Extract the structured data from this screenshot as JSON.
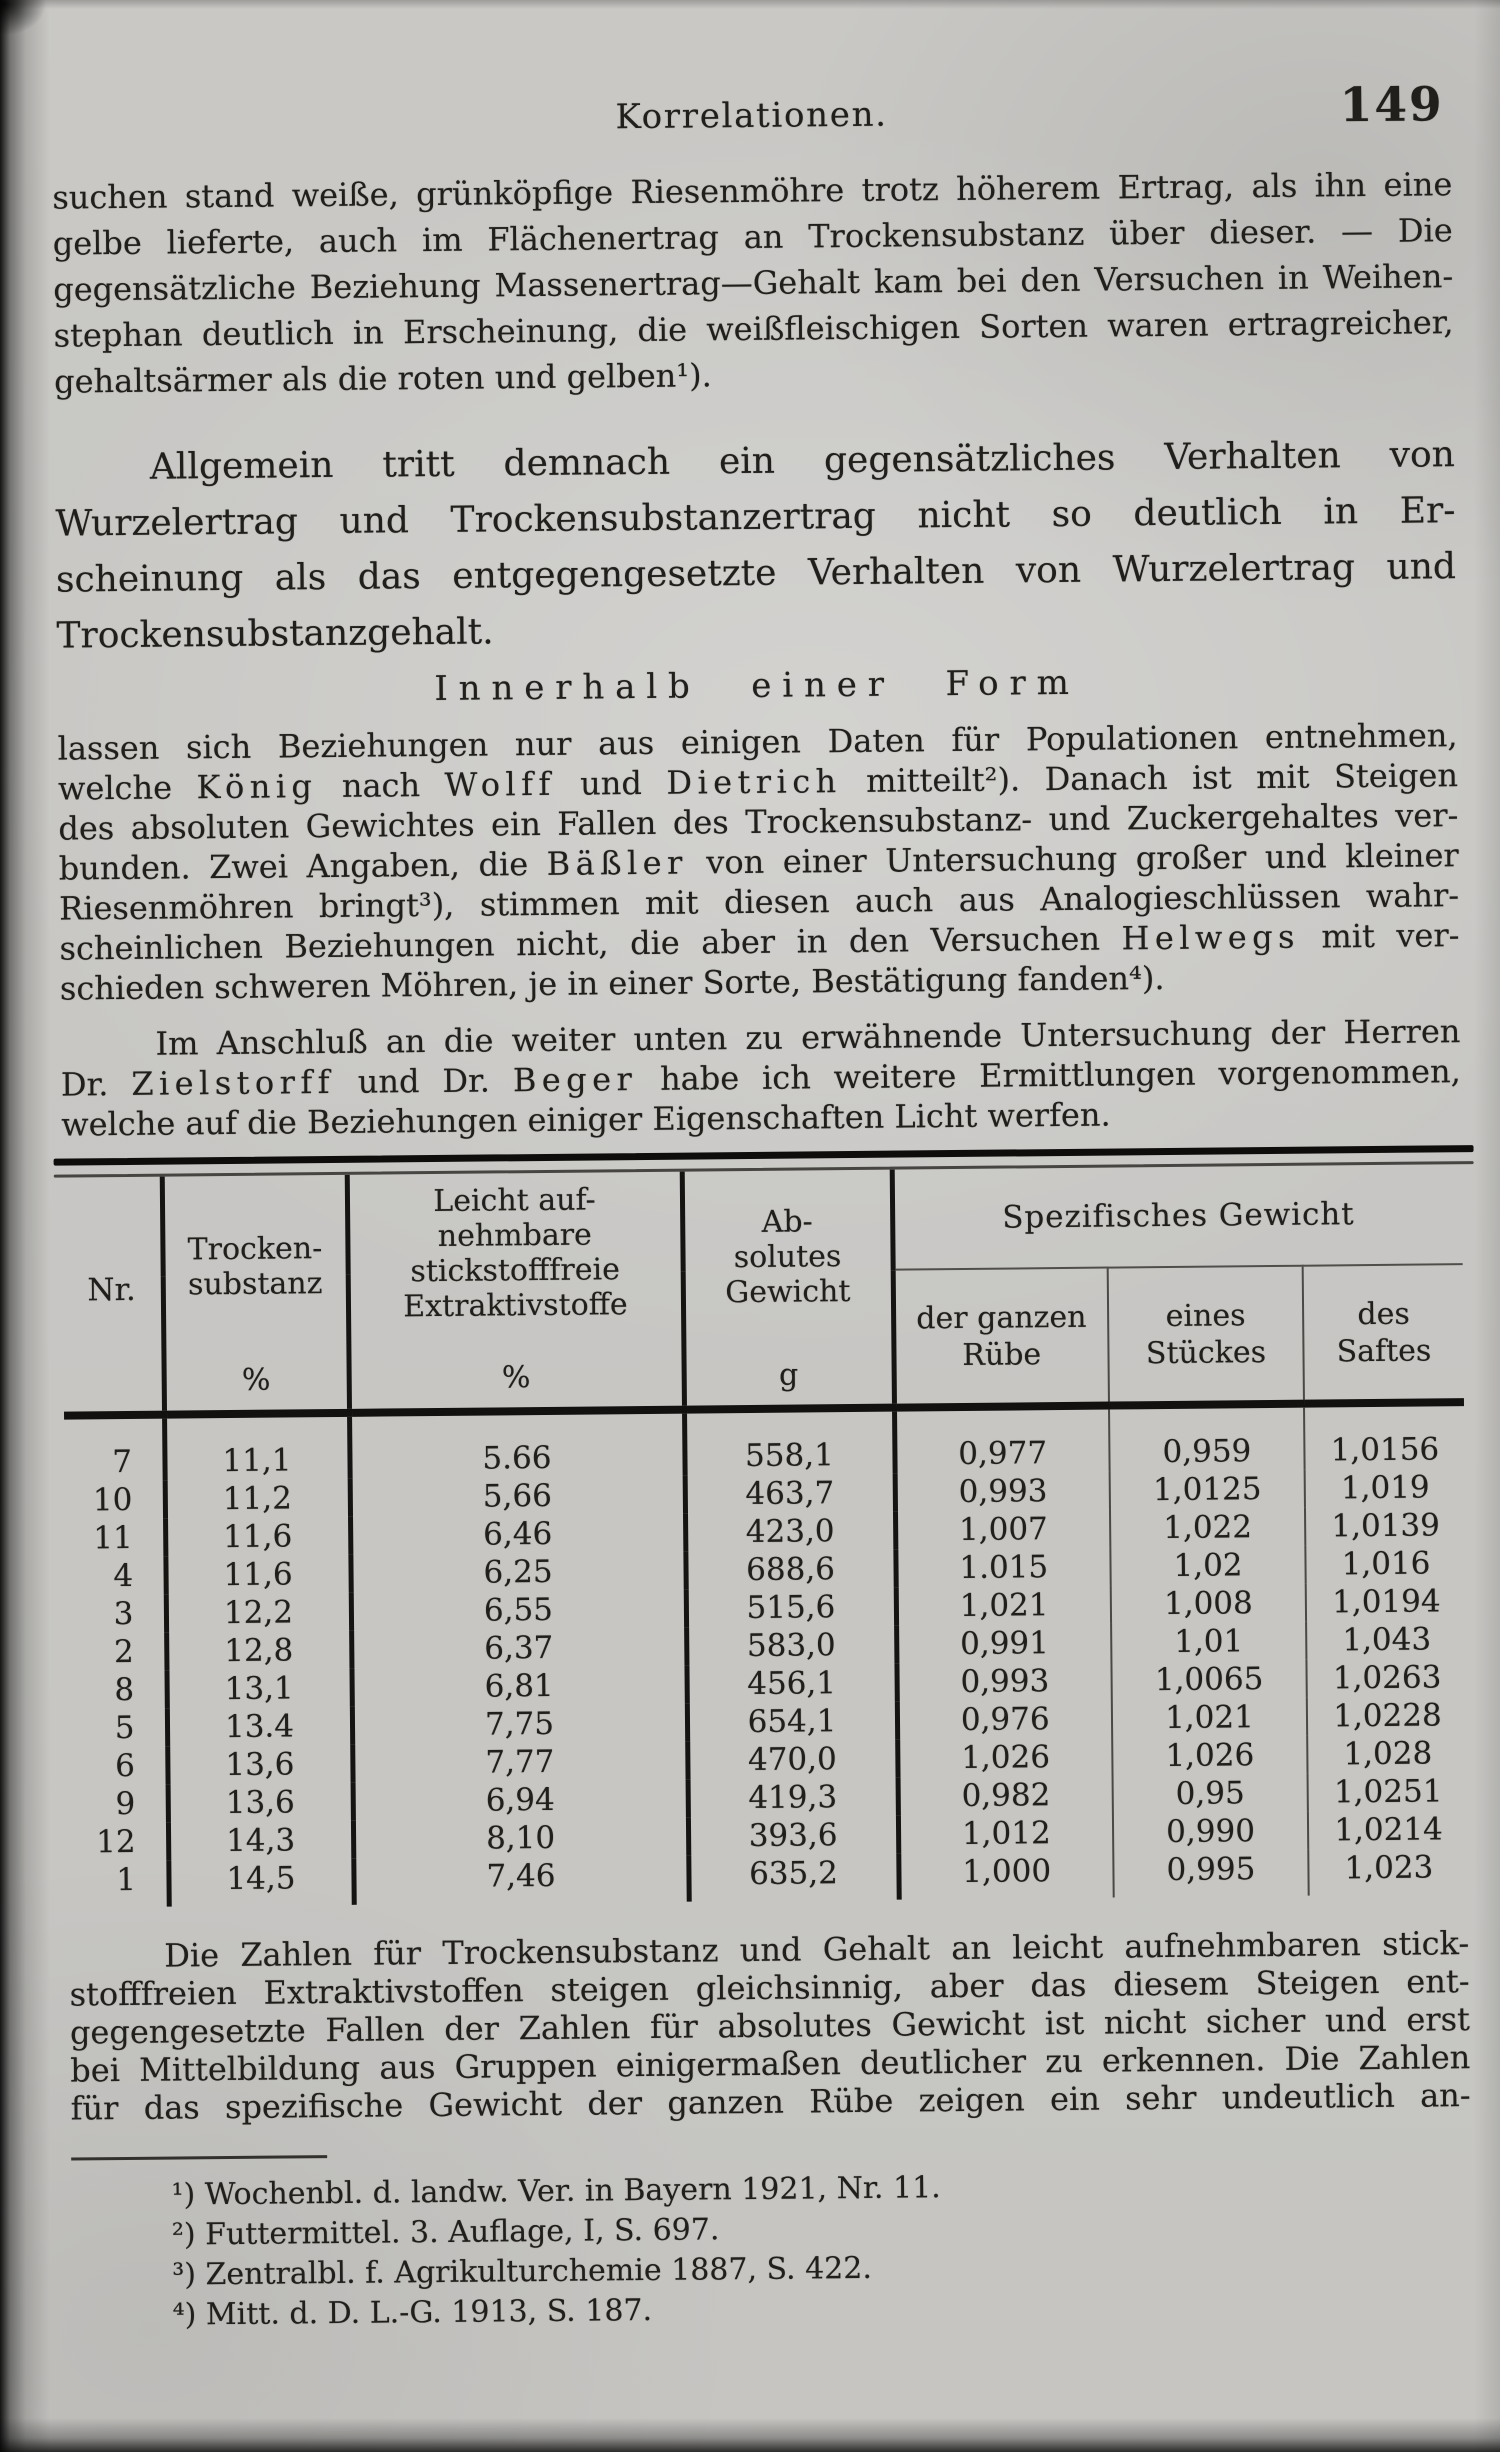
{
  "page": {
    "running_head": "Korrelationen.",
    "page_number": "149",
    "paper_color": "#c9c8c5",
    "ink_color": "#211f1c"
  },
  "paragraphs": {
    "p1_lines": [
      "suchen stand weiße, grünköpfige Riesenmöhre trotz höherem Ertrag, als ihn eine",
      "gelbe lieferte, auch im Flächenertrag an Trockensubstanz über dieser. — Die",
      "gegensätzliche Beziehung Massenertrag—Gehalt kam bei den Versuchen in Weihen-",
      "stephan deutlich in Erscheinung, die weißfleischigen Sorten waren ertragreicher,",
      "gehaltsärmer als die roten und gelben¹)."
    ],
    "p2_lines": [
      "Allgemein tritt demnach ein gegensätzliches Verhalten von",
      "Wurzelertrag und Trockensubstanzertrag nicht so deutlich in Er-",
      "scheinung als das entgegengesetzte Verhalten von Wurzelertrag und",
      "Trockensubstanzgehalt."
    ],
    "heading": "Innerhalb einer Form",
    "p3_lines": [
      "lassen sich Beziehungen nur aus einigen Daten für Populationen entnehmen,",
      [
        "welche ",
        {
          "sp": "König"
        },
        " nach ",
        {
          "sp": "Wolff"
        },
        " und ",
        {
          "sp": "Dietrich"
        },
        " mitteilt²). Danach ist mit Steigen"
      ],
      "des absoluten Gewichtes ein Fallen des Trockensubstanz- und Zuckergehaltes ver-",
      [
        "bunden. Zwei Angaben, die ",
        {
          "sp": "Bäßler"
        },
        " von einer Untersuchung großer und kleiner"
      ],
      "Riesenmöhren bringt³), stimmen mit diesen auch aus Analogieschlüssen wahr-",
      [
        "scheinlichen Beziehungen nicht, die aber in den Versuchen ",
        {
          "sp": "Helwegs"
        },
        " mit ver-"
      ],
      "schieden schweren Möhren, je in einer Sorte, Bestätigung fanden⁴)."
    ],
    "p4_lines": [
      "Im Anschluß an die weiter unten zu erwähnende Untersuchung der Herren",
      [
        "Dr. ",
        {
          "sp": "Zielstorff"
        },
        " und Dr. ",
        {
          "sp": "Beger"
        },
        " habe ich weitere Ermittlungen vorgenommen,"
      ],
      "welche auf die Beziehungen einiger Eigenschaften Licht werfen."
    ],
    "p5_lines": [
      "Die Zahlen für Trockensubstanz und Gehalt an leicht aufnehmbaren stick-",
      "stofffreien Extraktivstoffen steigen gleichsinnig, aber das diesem Steigen ent-",
      "gegengesetzte Fallen der Zahlen für absolutes Gewicht ist nicht sicher und erst",
      "bei Mittelbildung aus Gruppen einigermaßen deutlicher zu erkennen. Die Zahlen",
      "für das spezifische Gewicht der ganzen Rübe zeigen ein sehr undeutlich an-"
    ]
  },
  "table": {
    "head": {
      "nr": "Nr.",
      "trocken_lines": [
        "Trocken-",
        "substanz"
      ],
      "trocken_unit": "%",
      "leicht_lines": [
        "Leicht auf-",
        "nehmbare",
        "stickstofffreie",
        "Extraktivstoffe"
      ],
      "leicht_unit": "%",
      "abs_lines": [
        "Ab-",
        "solutes",
        "Gewicht"
      ],
      "abs_unit": "g",
      "spez_group": "Spezifisches Gewicht",
      "sub1_lines": [
        "der ganzen",
        "Rübe"
      ],
      "sub2_lines": [
        "eines",
        "Stückes"
      ],
      "sub3_lines": [
        "des",
        "Saftes"
      ]
    },
    "rows": [
      [
        "7",
        "11,1",
        "5.66",
        "558,1",
        "0,977",
        "0,959",
        "1,0156"
      ],
      [
        "10",
        "11,2",
        "5,66",
        "463,7",
        "0,993",
        "1,0125",
        "1,019"
      ],
      [
        "11",
        "11,6",
        "6,46",
        "423,0",
        "1,007",
        "1,022",
        "1,0139"
      ],
      [
        "4",
        "11,6",
        "6,25",
        "688,6",
        "1.015",
        "1,02",
        "1,016"
      ],
      [
        "3",
        "12,2",
        "6,55",
        "515,6",
        "1,021",
        "1,008",
        "1,0194"
      ],
      [
        "2",
        "12,8",
        "6,37",
        "583,0",
        "0,991",
        "1,01",
        "1,043"
      ],
      [
        "8",
        "13,1",
        "6,81",
        "456,1",
        "0,993",
        "1,0065",
        "1,0263"
      ],
      [
        "5",
        "13.4",
        "7,75",
        "654,1",
        "0,976",
        "1,021",
        "1,0228"
      ],
      [
        "6",
        "13,6",
        "7,77",
        "470,0",
        "1,026",
        "1,026",
        "1,028"
      ],
      [
        "9",
        "13,6",
        "6,94",
        "419,3",
        "0,982",
        "0,95",
        "1,0251"
      ],
      [
        "12",
        "14,3",
        "8,10",
        "393,6",
        "1,012",
        "0,990",
        "1,0214"
      ],
      [
        "1",
        "14,5",
        "7,46",
        "635,2",
        "1,000",
        "0,995",
        "1,023"
      ]
    ]
  },
  "footnotes": {
    "lines": [
      "¹) Wochenbl. d. landw. Ver. in Bayern 1921, Nr. 11.",
      "²) Futtermittel. 3. Auflage, I, S. 697.",
      "³) Zentralbl. f. Agrikulturchemie 1887, S. 422.",
      "⁴) Mitt. d. D. L.-G. 1913, S. 187."
    ]
  }
}
